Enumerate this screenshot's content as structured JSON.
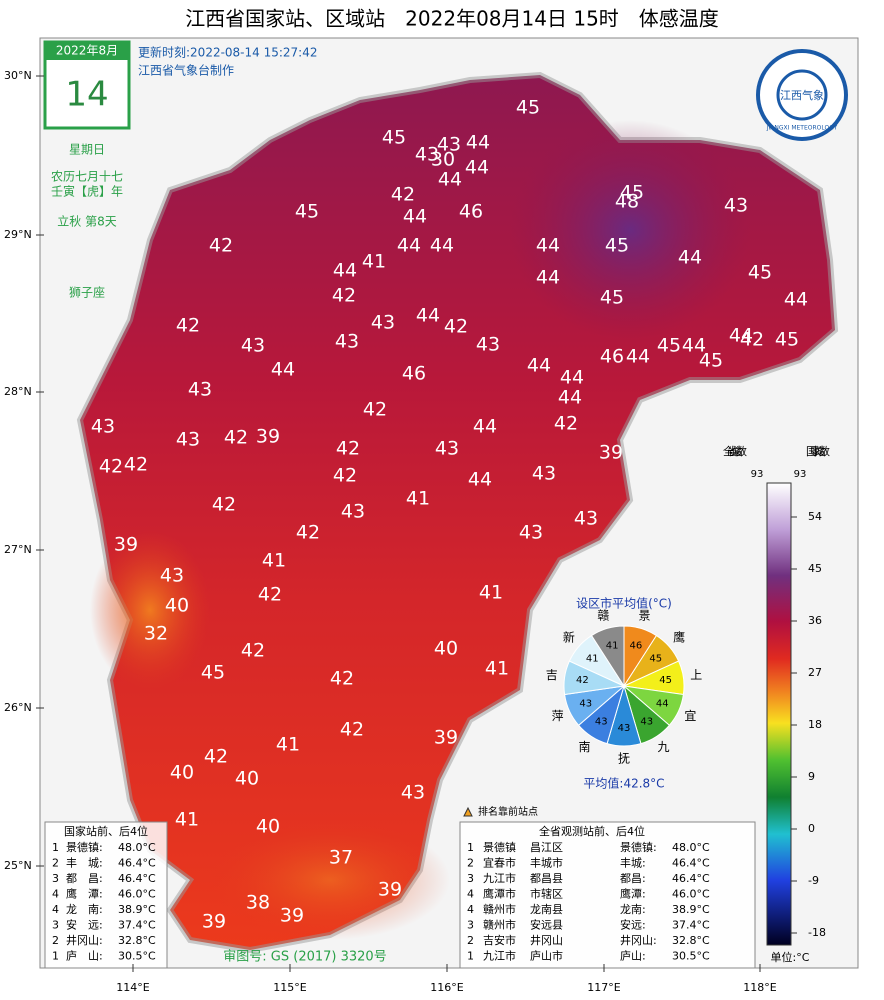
{
  "title": "江西省国家站、区域站　2022年08月14日 15时　体感温度",
  "calendar": {
    "month": "2022年8月",
    "day": "14",
    "weekday": "星期日",
    "lunar": "农历七月十七",
    "ganzhi": "壬寅【虎】年",
    "solar_term": "立秋 第8天",
    "zodiac": "狮子座"
  },
  "update_time": "更新时刻:2022-08-14 15:27:42",
  "producer": "江西省气象台制作",
  "logo": {
    "name": "江西气象",
    "english": "JIANGXI METEOROLOGY"
  },
  "lat_ticks": [
    "30°N",
    "29°N",
    "28°N",
    "27°N",
    "26°N",
    "25°N"
  ],
  "lon_ticks": [
    "114°E",
    "115°E",
    "116°E",
    "117°E",
    "118°E"
  ],
  "map_values": [
    45,
    45,
    43,
    44,
    43,
    30,
    44,
    44,
    42,
    45,
    48,
    43,
    45,
    44,
    46,
    42,
    44,
    44,
    44,
    45,
    44,
    45,
    44,
    41,
    44,
    42,
    44,
    45,
    42,
    43,
    44,
    42,
    44,
    42,
    45,
    43,
    43,
    43,
    45,
    44,
    46,
    44,
    45,
    44,
    46,
    44,
    44,
    43,
    42,
    44,
    43,
    43,
    42,
    39,
    44,
    42,
    42,
    42,
    42,
    43,
    39,
    42,
    44,
    43,
    42,
    41,
    43,
    43,
    42,
    39,
    41,
    43,
    43,
    42,
    41,
    40,
    32,
    42,
    40,
    41,
    45,
    42,
    41,
    42,
    39,
    42,
    40,
    40,
    43,
    41,
    40,
    37,
    39,
    38,
    39,
    39
  ],
  "pie": {
    "title": "设区市平均值(°C)",
    "average": "平均值:42.8°C",
    "segments": [
      {
        "name": "景",
        "value": 46,
        "color": "#f08a1c"
      },
      {
        "name": "鹰",
        "value": 45,
        "color": "#e8b21a"
      },
      {
        "name": "上",
        "value": 45,
        "color": "#f3ef1a"
      },
      {
        "name": "宜",
        "value": 44,
        "color": "#7dd640"
      },
      {
        "name": "九",
        "value": 43,
        "color": "#3aa52f"
      },
      {
        "name": "抚",
        "value": 43,
        "color": "#2a8ad8"
      },
      {
        "name": "南",
        "value": 43,
        "color": "#3b7fe0"
      },
      {
        "name": "萍",
        "value": 43,
        "color": "#6ab0f0"
      },
      {
        "name": "吉",
        "value": 42,
        "color": "#a8dcf5"
      },
      {
        "name": "新",
        "value": 41,
        "color": "#dff3fb"
      },
      {
        "name": "赣",
        "value": 41,
        "color": "#8a8a8a"
      }
    ]
  },
  "colorbar": {
    "total_label": "全省站数",
    "total": 93,
    "national_label": "国家站数",
    "national": 93,
    "ticks": [
      54,
      45,
      36,
      27,
      18,
      9,
      0,
      -9,
      -18
    ],
    "unit": "单位:°C"
  },
  "legend": "排名靠前站点",
  "national_table": {
    "header": "国家站前、后4位",
    "rows": [
      [
        "1",
        "景德镇:",
        "48.0°C"
      ],
      [
        "2",
        "丰　城:",
        "46.4°C"
      ],
      [
        "3",
        "都　昌:",
        "46.4°C"
      ],
      [
        "4",
        "鹰　潭:",
        "46.0°C"
      ],
      [
        "4",
        "龙　南:",
        "38.9°C"
      ],
      [
        "3",
        "安　远:",
        "37.4°C"
      ],
      [
        "2",
        "井冈山:",
        "32.8°C"
      ],
      [
        "1",
        "庐　山:",
        "30.5°C"
      ]
    ]
  },
  "province_table": {
    "header": "全省观测站前、后4位",
    "rows": [
      [
        "1",
        "景德镇",
        "昌江区",
        "景德镇:",
        "48.0°C"
      ],
      [
        "2",
        "宜春市",
        "丰城市",
        "丰城:",
        "46.4°C"
      ],
      [
        "3",
        "九江市",
        "都昌县",
        "都昌:",
        "46.4°C"
      ],
      [
        "4",
        "鹰潭市",
        "市辖区",
        "鹰潭:",
        "46.0°C"
      ],
      [
        "4",
        "赣州市",
        "龙南县",
        "龙南:",
        "38.9°C"
      ],
      [
        "3",
        "赣州市",
        "安远县",
        "安远:",
        "37.4°C"
      ],
      [
        "2",
        "吉安市",
        "井冈山",
        "井冈山:",
        "32.8°C"
      ],
      [
        "1",
        "九江市",
        "庐山市",
        "庐山:",
        "30.5°C"
      ]
    ]
  },
  "review_number": "审图号: GS (2017) 3320号"
}
